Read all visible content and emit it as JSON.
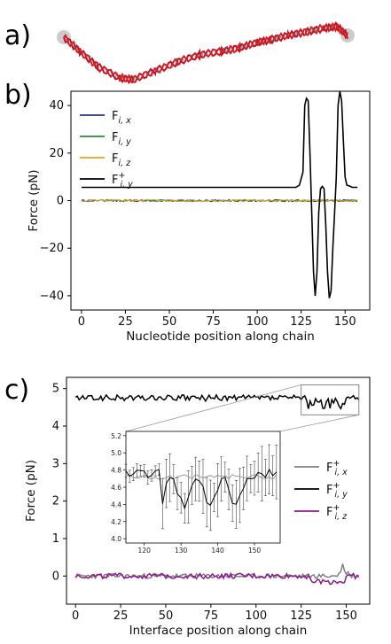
{
  "panels": {
    "a": "a)",
    "b": "b)",
    "c": "c)"
  },
  "chart_data": [
    {
      "type": "line",
      "panel": "b)",
      "xlabel": "Nucleotide position along chain",
      "ylabel": "Force (pN)",
      "xlim": [
        -6,
        164
      ],
      "ylim": [
        -46,
        46
      ],
      "xticks": [
        0,
        25,
        50,
        75,
        100,
        125,
        150
      ],
      "yticks": [
        40,
        20,
        0,
        -20,
        -40
      ],
      "legend_position": "top-left",
      "series": [
        {
          "name": "Fi,x",
          "label_main": "F",
          "label_sub": "i, x",
          "label_sup": "",
          "color": "#1f2ea8",
          "values": 0
        },
        {
          "name": "Fi,y",
          "label_main": "F",
          "label_sub": "i, y",
          "label_sup": "",
          "color": "#2e8b2e",
          "values": 0
        },
        {
          "name": "Fi,z",
          "label_main": "F",
          "label_sub": "i, z",
          "label_sup": "",
          "color": "#f0a020",
          "values": 0
        },
        {
          "name": "F+i,y",
          "label_main": "F",
          "label_sub": "i, y",
          "label_sup": "+",
          "color": "#000000",
          "points": [
            [
              0,
              5.6
            ],
            [
              122,
              5.6
            ],
            [
              124,
              6.5
            ],
            [
              126,
              12
            ],
            [
              127,
              40
            ],
            [
              128,
              43
            ],
            [
              129,
              42
            ],
            [
              130,
              20
            ],
            [
              131,
              -5
            ],
            [
              132,
              -30
            ],
            [
              133,
              -40
            ],
            [
              134,
              -30
            ],
            [
              135,
              -5
            ],
            [
              136,
              5
            ],
            [
              137,
              6
            ],
            [
              138,
              5
            ],
            [
              139,
              -10
            ],
            [
              140,
              -30
            ],
            [
              141,
              -41
            ],
            [
              142,
              -38
            ],
            [
              143,
              -20
            ],
            [
              144,
              -5
            ],
            [
              145,
              10
            ],
            [
              146,
              40
            ],
            [
              147,
              46
            ],
            [
              148,
              42
            ],
            [
              149,
              25
            ],
            [
              150,
              10
            ],
            [
              151,
              6.5
            ],
            [
              153,
              6
            ],
            [
              154,
              5.6
            ],
            [
              157,
              5.6
            ]
          ]
        }
      ]
    },
    {
      "type": "line",
      "panel": "c)",
      "xlabel": "Interface position along chain",
      "ylabel": "Force (pN)",
      "xlim": [
        -5,
        163
      ],
      "ylim": [
        -0.75,
        5.3
      ],
      "xticks": [
        0,
        25,
        50,
        75,
        100,
        125,
        150
      ],
      "yticks": [
        5,
        4,
        3,
        2,
        1,
        0
      ],
      "legend_position": "center-right",
      "series": [
        {
          "name": "F+i,x",
          "label_main": "F",
          "label_sub": "i, x",
          "label_sup": "+",
          "color": "#808080",
          "mean": 0.0,
          "amplitude": 0.06
        },
        {
          "name": "F+i,y",
          "label_main": "F",
          "label_sub": "i, y",
          "label_sup": "+",
          "color": "#000000",
          "mean": 4.75,
          "amplitude": 0.08
        },
        {
          "name": "F+i,z",
          "label_main": "F",
          "label_sub": "i, z",
          "label_sup": "+",
          "color": "#8b1a8b",
          "mean": 0.0,
          "amplitude": 0.07
        }
      ],
      "inset": {
        "xlim": [
          115,
          157
        ],
        "ylim": [
          3.95,
          5.25
        ],
        "xticks": [
          120,
          130,
          140,
          150
        ],
        "yticks": [
          4.0,
          4.2,
          4.4,
          4.6,
          4.8,
          5.0,
          5.2
        ],
        "source_x_range": [
          125,
          157
        ]
      }
    }
  ]
}
